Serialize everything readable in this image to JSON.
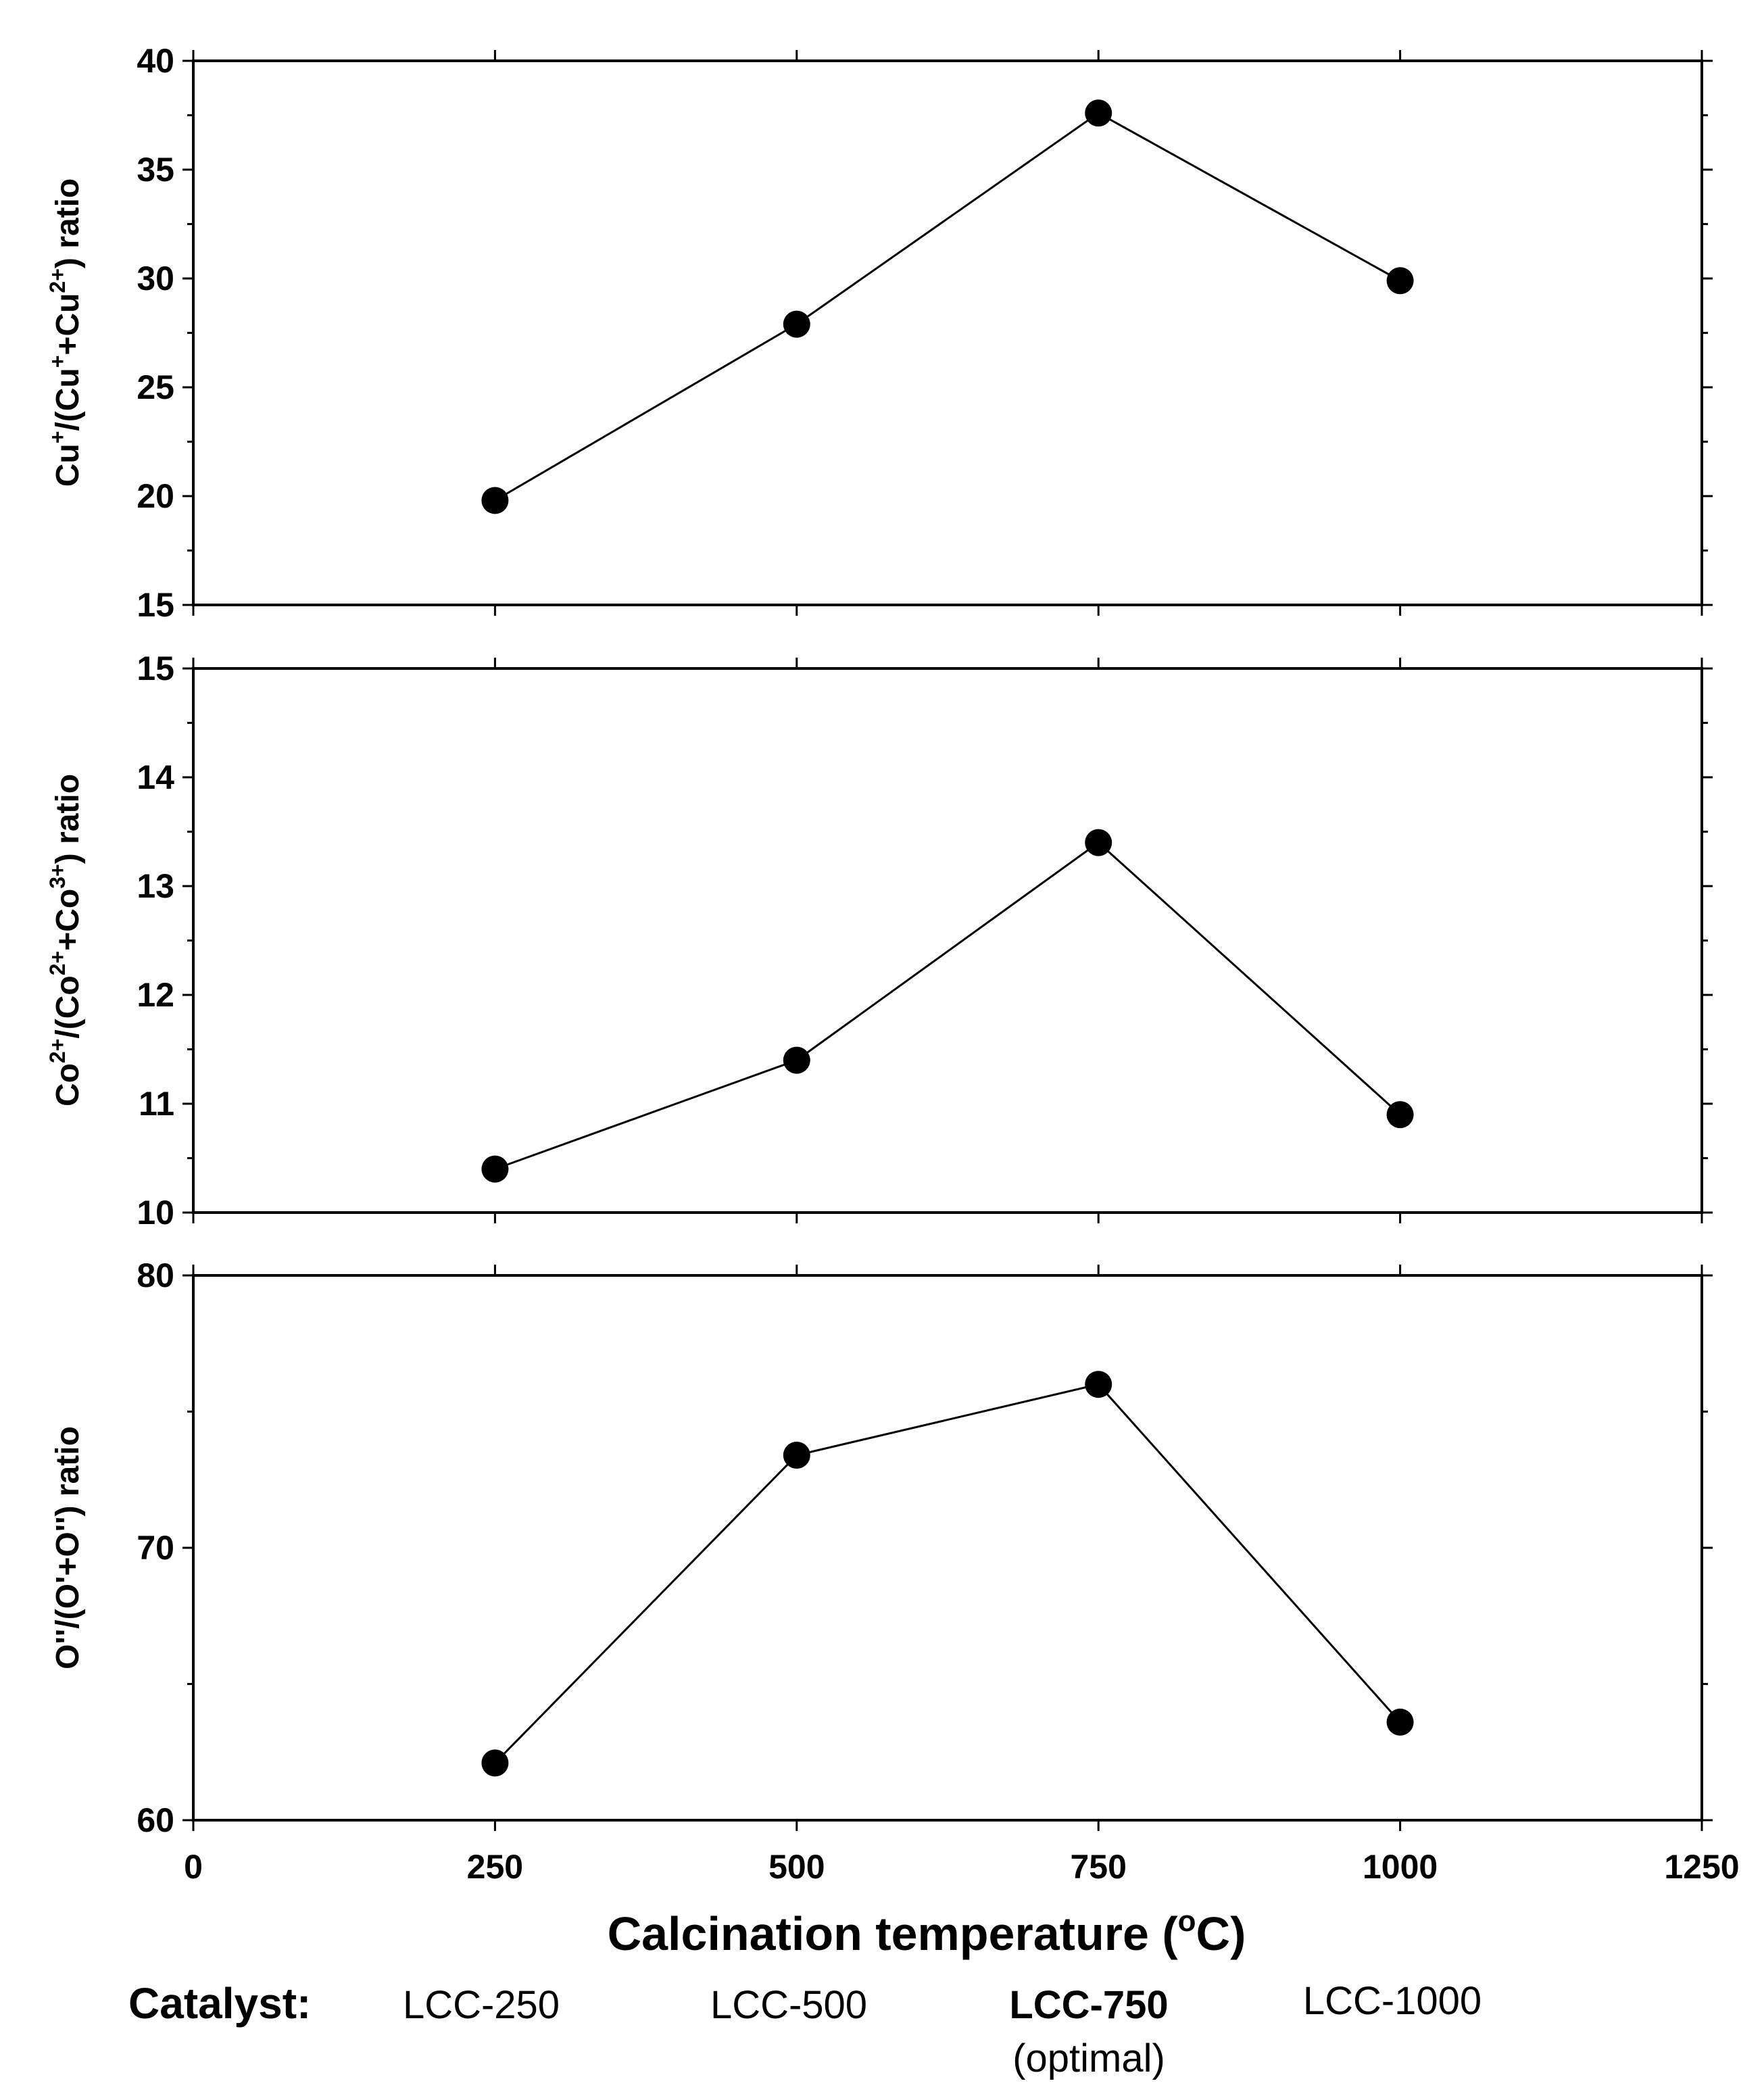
{
  "chart_data": [
    {
      "type": "line",
      "ylabel": "Cu⁺/(Cu⁺+Cu²⁺) ratio",
      "ylabel_parts": [
        "Cu",
        "+",
        "/(Cu",
        "+",
        "+Cu",
        "2+",
        ") ratio"
      ],
      "x": [
        250,
        500,
        750,
        1000
      ],
      "values": [
        19.8,
        27.9,
        37.6,
        29.9
      ],
      "xlim": [
        0,
        1250
      ],
      "ylim": [
        15,
        40
      ],
      "yticks": [
        15,
        20,
        25,
        30,
        35,
        40
      ],
      "ytick_labels": [
        "15",
        "20",
        "25",
        "30",
        "35",
        "40"
      ]
    },
    {
      "type": "line",
      "ylabel": "Co²⁺/(Co²⁺+Co³⁺) ratio",
      "ylabel_parts": [
        "Co",
        "2+",
        "/(Co",
        "2+",
        "+Co",
        "3+",
        ") ratio"
      ],
      "x": [
        250,
        500,
        750,
        1000
      ],
      "values": [
        10.4,
        11.4,
        13.4,
        10.9
      ],
      "xlim": [
        0,
        1250
      ],
      "ylim": [
        10,
        15
      ],
      "yticks": [
        10,
        11,
        12,
        13,
        14,
        15
      ],
      "ytick_labels": [
        "10",
        "11",
        "12",
        "13",
        "14",
        "15"
      ]
    },
    {
      "type": "line",
      "ylabel": "O''/(O'+O'') ratio",
      "ylabel_parts": [
        "O''/(O'+O'') ratio"
      ],
      "x": [
        250,
        500,
        750,
        1000
      ],
      "values": [
        62.1,
        73.4,
        76.0,
        63.6
      ],
      "xlim": [
        0,
        1250
      ],
      "ylim": [
        60,
        80
      ],
      "yticks": [
        60,
        70,
        80
      ],
      "ytick_labels": [
        "60",
        "70",
        "80"
      ]
    }
  ],
  "x_axis": {
    "title_parts": [
      "Calcination temperature (",
      "o",
      "C)"
    ],
    "ticks": [
      0,
      250,
      500,
      750,
      1000,
      1250
    ],
    "tick_labels": [
      "0",
      "250",
      "500",
      "750",
      "1000",
      "1250"
    ]
  },
  "catalyst": {
    "heading": "Catalyst:",
    "items": [
      "LCC-250",
      "LCC-500",
      "LCC-750",
      "LCC-1000"
    ],
    "optimal_note": "(optimal)"
  }
}
